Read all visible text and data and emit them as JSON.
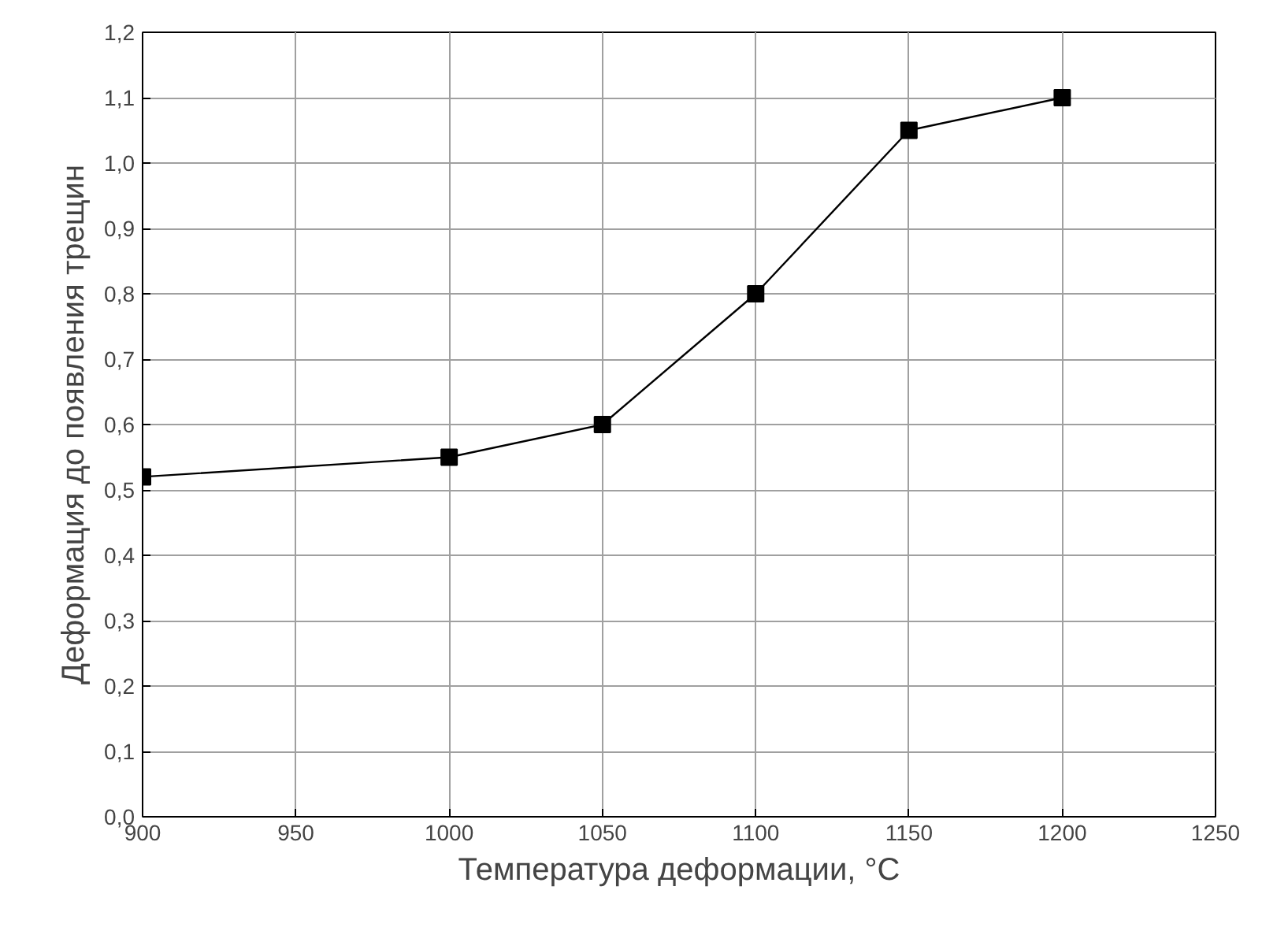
{
  "chart_data": {
    "type": "line",
    "xlabel": "Температура деформации, °C",
    "ylabel": "Деформация до появления трещин",
    "x": [
      900,
      1000,
      1050,
      1100,
      1150,
      1200
    ],
    "series": [
      {
        "color": "#000000",
        "values": [
          0.52,
          0.55,
          0.6,
          0.8,
          1.05,
          1.1
        ]
      }
    ],
    "xlim": [
      900,
      1250
    ],
    "ylim": [
      0,
      1.2
    ],
    "xticks": [
      900,
      950,
      1000,
      1050,
      1100,
      1150,
      1200,
      1250
    ],
    "yticks": [
      {
        "value": 0,
        "label": "0,0"
      },
      {
        "value": 0.1,
        "label": "0,1"
      },
      {
        "value": 0.2,
        "label": "0,2"
      },
      {
        "value": 0.3,
        "label": "0,3"
      },
      {
        "value": 0.4,
        "label": "0,4"
      },
      {
        "value": 0.5,
        "label": "0,5"
      },
      {
        "value": 0.6,
        "label": "0,6"
      },
      {
        "value": 0.7,
        "label": "0,7"
      },
      {
        "value": 0.8,
        "label": "0,8"
      },
      {
        "value": 0.9,
        "label": "0,9"
      },
      {
        "value": 1.0,
        "label": "1,0"
      },
      {
        "value": 1.1,
        "label": "1,1"
      },
      {
        "value": 1.2,
        "label": "1,2"
      }
    ],
    "grid": true,
    "marker": "square",
    "line_style": "solid"
  }
}
